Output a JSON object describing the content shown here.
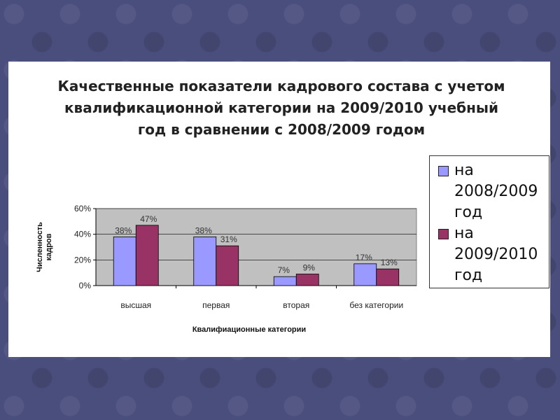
{
  "chart_data": {
    "type": "bar",
    "title": "Качественные показатели кадрового состава с учетом квалификационной категории на 2009/2010 учебный год в сравнении с 2008/2009 годом",
    "xlabel": "Квалифиационные категории",
    "ylabel": "Численность кадров",
    "categories": [
      "высшая",
      "первая",
      "вторая",
      "без категории"
    ],
    "series": [
      {
        "name": "на 2008/2009 год",
        "values": [
          38,
          38,
          7,
          17
        ],
        "labels": [
          "38%",
          "38%",
          "7%",
          "17%"
        ],
        "color": "#9999ff"
      },
      {
        "name": "на 2009/2010 год",
        "values": [
          47,
          31,
          9,
          13
        ],
        "labels": [
          "47%",
          "31%",
          "9%",
          "13%"
        ],
        "color": "#993366"
      }
    ],
    "ylim": [
      0,
      60
    ],
    "yticks": [
      0,
      20,
      40,
      60
    ],
    "ytick_labels": [
      "0%",
      "20%",
      "40%",
      "60%"
    ],
    "grid": true,
    "legend": "right"
  }
}
